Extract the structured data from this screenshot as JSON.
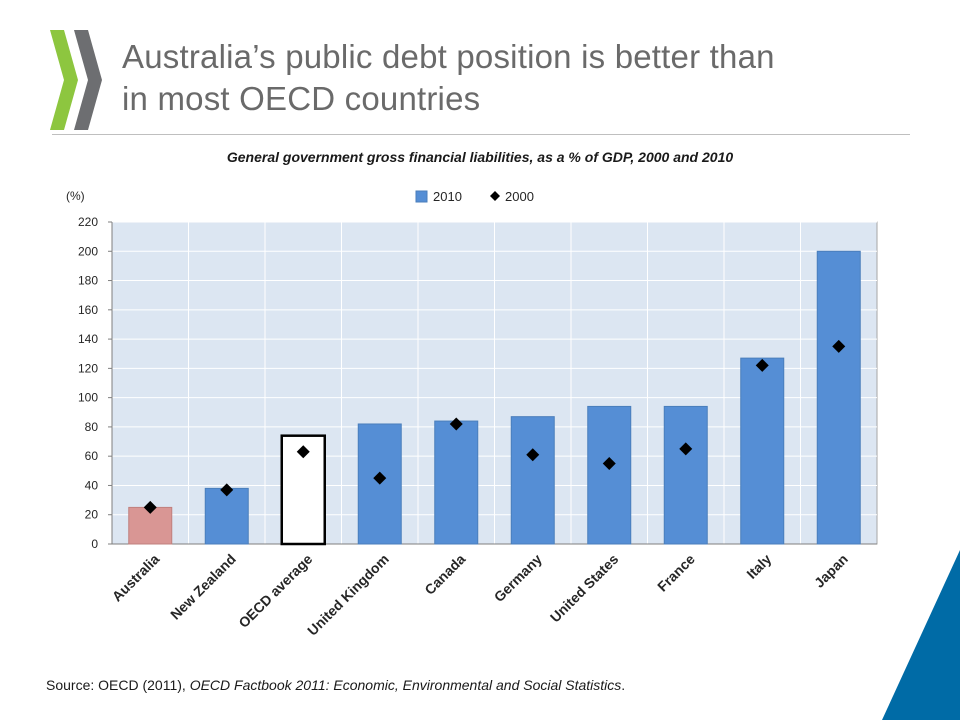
{
  "slide": {
    "title": "Australia’s public debt position is better than in most OECD countries",
    "title_line1": "Australia’s public debt position is better than",
    "title_line2": "in most OECD countries",
    "source_prefix": "Source: OECD (2011), ",
    "source_publication": "OECD Factbook 2011: Economic, Environmental and Social Statistics",
    "source_suffix": "."
  },
  "colors": {
    "bar_2010": "#558ed5",
    "bar_australia": "#d99694",
    "bar_oecd_average": "#ffffff",
    "marker_2000": "#000000",
    "plot_background": "#dce6f2",
    "logo_green": "#8dc63f",
    "logo_grey": "#6d6e71",
    "corner_blue": "#006ba6"
  },
  "chart_data": {
    "type": "bar",
    "title": "General government gross financial liabilities, as a % of GDP, 2000 and 2010",
    "ylabel": "(%)",
    "xlabel": "",
    "ylim": [
      0,
      220
    ],
    "yticks": [
      0,
      20,
      40,
      60,
      80,
      100,
      120,
      140,
      160,
      180,
      200,
      220
    ],
    "grid": "horizontal",
    "legend_position": "top",
    "categories": [
      "Australia",
      "New Zealand",
      "OECD average",
      "United Kingdom",
      "Canada",
      "Germany",
      "United States",
      "France",
      "Italy",
      "Japan"
    ],
    "series": [
      {
        "name": "2010",
        "kind": "bar",
        "values": [
          25,
          38,
          74,
          82,
          84,
          87,
          94,
          94,
          127,
          200
        ]
      },
      {
        "name": "2000",
        "kind": "marker",
        "values": [
          25,
          37,
          63,
          45,
          82,
          61,
          55,
          65,
          122,
          135
        ]
      }
    ]
  }
}
